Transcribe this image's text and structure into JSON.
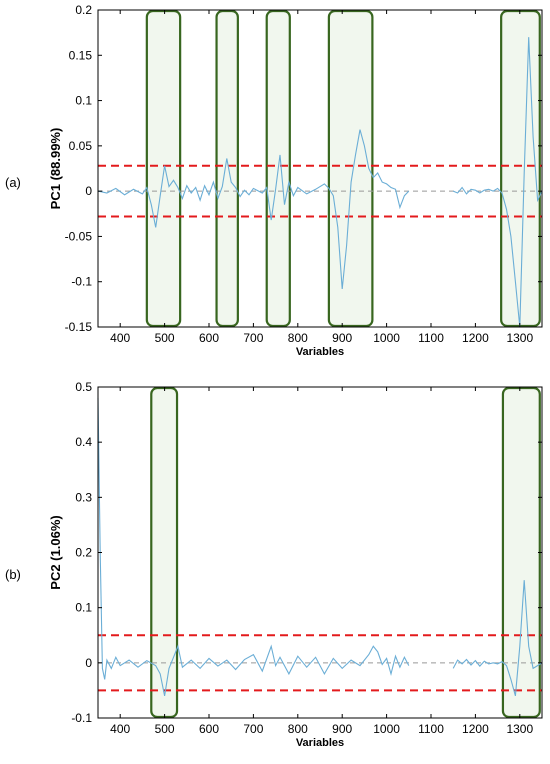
{
  "chart_data": [
    {
      "type": "line",
      "panel_label": "(a)",
      "xlabel": "Variables",
      "ylabel": "PC1 (88.99%)",
      "xlim": [
        350,
        1350
      ],
      "ylim": [
        -0.15,
        0.2
      ],
      "xticks": [
        400,
        500,
        600,
        700,
        800,
        900,
        1000,
        1100,
        1200,
        1300
      ],
      "yticks": [
        -0.15,
        -0.1,
        -0.05,
        0,
        0.05,
        0.1,
        0.15,
        0.2
      ],
      "ytick_labels": [
        "-0.15",
        "-0.1",
        "-0.05",
        "0",
        "0.05",
        "0.1",
        "0.15",
        "0.2"
      ],
      "grid": false,
      "series": [
        {
          "color": "#6baed6",
          "segments": [
            [
              [
                350,
                0
              ],
              [
                370,
                -0.002
              ],
              [
                390,
                0.003
              ],
              [
                410,
                -0.004
              ],
              [
                430,
                0.002
              ],
              [
                450,
                -0.003
              ],
              [
                460,
                0.004
              ],
              [
                470,
                -0.015
              ],
              [
                480,
                -0.04
              ],
              [
                490,
                -0.005
              ],
              [
                500,
                0.028
              ],
              [
                510,
                0.005
              ],
              [
                520,
                0.012
              ],
              [
                530,
                0.004
              ],
              [
                540,
                -0.008
              ],
              [
                550,
                0.006
              ],
              [
                560,
                -0.002
              ],
              [
                570,
                0.004
              ],
              [
                580,
                -0.01
              ],
              [
                590,
                0.006
              ],
              [
                600,
                -0.004
              ],
              [
                610,
                0.01
              ],
              [
                620,
                -0.008
              ],
              [
                630,
                0.005
              ],
              [
                640,
                0.036
              ],
              [
                650,
                0.01
              ],
              [
                660,
                0.004
              ],
              [
                670,
                -0.006
              ],
              [
                680,
                0.001
              ],
              [
                690,
                -0.004
              ],
              [
                700,
                0.003
              ],
              [
                720,
                -0.002
              ],
              [
                730,
                0.004
              ],
              [
                740,
                -0.032
              ],
              [
                750,
                0.002
              ],
              [
                760,
                0.04
              ],
              [
                770,
                -0.015
              ],
              [
                780,
                0.01
              ],
              [
                790,
                -0.005
              ],
              [
                800,
                0.004
              ],
              [
                820,
                -0.003
              ],
              [
                840,
                0.002
              ],
              [
                860,
                0.008
              ],
              [
                870,
                0.003
              ],
              [
                880,
                -0.005
              ],
              [
                890,
                -0.04
              ],
              [
                900,
                -0.108
              ],
              [
                910,
                -0.06
              ],
              [
                920,
                0.01
              ],
              [
                930,
                0.04
              ],
              [
                940,
                0.068
              ],
              [
                950,
                0.05
              ],
              [
                960,
                0.025
              ],
              [
                970,
                0.015
              ],
              [
                980,
                0.02
              ],
              [
                990,
                0.01
              ],
              [
                1000,
                0.008
              ],
              [
                1010,
                0.004
              ],
              [
                1020,
                0.002
              ],
              [
                1030,
                -0.018
              ],
              [
                1040,
                -0.005
              ],
              [
                1050,
                0
              ]
            ],
            [
              [
                1150,
                0
              ],
              [
                1160,
                -0.002
              ],
              [
                1170,
                0.004
              ],
              [
                1180,
                -0.003
              ],
              [
                1190,
                0.002
              ],
              [
                1200,
                0.001
              ],
              [
                1210,
                -0.002
              ],
              [
                1220,
                0.001
              ],
              [
                1230,
                0.002
              ],
              [
                1240,
                0
              ],
              [
                1250,
                0.003
              ],
              [
                1260,
                -0.002
              ],
              [
                1270,
                -0.02
              ],
              [
                1280,
                -0.05
              ],
              [
                1290,
                -0.1
              ],
              [
                1300,
                -0.15
              ],
              [
                1310,
                0.02
              ],
              [
                1320,
                0.17
              ],
              [
                1330,
                0.06
              ],
              [
                1340,
                -0.01
              ],
              [
                1350,
                0
              ]
            ]
          ]
        }
      ],
      "threshold_lines": [
        0.028,
        -0.028
      ],
      "threshold_color": "#e31a1c",
      "zero_line_color": "#999999",
      "highlight_regions": [
        [
          460,
          535
        ],
        [
          617,
          665
        ],
        [
          730,
          782
        ],
        [
          870,
          968
        ],
        [
          1258,
          1345
        ]
      ],
      "highlight_color": "#38661f"
    },
    {
      "type": "line",
      "panel_label": "(b)",
      "xlabel": "Variables",
      "ylabel": "PC2 (1.06%)",
      "xlim": [
        350,
        1350
      ],
      "ylim": [
        -0.1,
        0.5
      ],
      "xticks": [
        400,
        500,
        600,
        700,
        800,
        900,
        1000,
        1100,
        1200,
        1300
      ],
      "yticks": [
        -0.1,
        0,
        0.1,
        0.2,
        0.3,
        0.4,
        0.5
      ],
      "ytick_labels": [
        "-0.1",
        "0",
        "0.1",
        "0.2",
        "0.3",
        "0.4",
        "0.5"
      ],
      "grid": false,
      "series": [
        {
          "color": "#6baed6",
          "segments": [
            [
              [
                350,
                0.48
              ],
              [
                355,
                0.2
              ],
              [
                360,
                -0.01
              ],
              [
                365,
                -0.03
              ],
              [
                370,
                0.005
              ],
              [
                380,
                -0.01
              ],
              [
                390,
                0.01
              ],
              [
                400,
                -0.005
              ],
              [
                420,
                0.005
              ],
              [
                440,
                -0.008
              ],
              [
                460,
                0.004
              ],
              [
                480,
                -0.005
              ],
              [
                490,
                -0.02
              ],
              [
                500,
                -0.06
              ],
              [
                510,
                -0.01
              ],
              [
                520,
                0.01
              ],
              [
                530,
                0.03
              ],
              [
                540,
                -0.008
              ],
              [
                560,
                0.005
              ],
              [
                580,
                -0.01
              ],
              [
                600,
                0.008
              ],
              [
                620,
                -0.006
              ],
              [
                640,
                0.005
              ],
              [
                660,
                -0.012
              ],
              [
                680,
                0.006
              ],
              [
                700,
                0.015
              ],
              [
                720,
                -0.015
              ],
              [
                740,
                0.03
              ],
              [
                750,
                -0.005
              ],
              [
                760,
                0.01
              ],
              [
                780,
                -0.02
              ],
              [
                800,
                0.012
              ],
              [
                820,
                -0.008
              ],
              [
                840,
                0.01
              ],
              [
                860,
                -0.02
              ],
              [
                880,
                0.008
              ],
              [
                900,
                -0.01
              ],
              [
                920,
                0.005
              ],
              [
                940,
                -0.005
              ],
              [
                960,
                0.015
              ],
              [
                970,
                0.03
              ],
              [
                980,
                0.02
              ],
              [
                990,
                -0.003
              ],
              [
                1000,
                0.008
              ],
              [
                1010,
                -0.02
              ],
              [
                1020,
                0.012
              ],
              [
                1030,
                -0.008
              ],
              [
                1040,
                0.01
              ],
              [
                1050,
                -0.005
              ]
            ],
            [
              [
                1150,
                -0.01
              ],
              [
                1160,
                0.005
              ],
              [
                1170,
                -0.002
              ],
              [
                1180,
                0.006
              ],
              [
                1190,
                -0.004
              ],
              [
                1200,
                0.004
              ],
              [
                1210,
                -0.006
              ],
              [
                1220,
                0.003
              ],
              [
                1230,
                -0.002
              ],
              [
                1240,
                0
              ],
              [
                1250,
                -0.002
              ],
              [
                1260,
                0.002
              ],
              [
                1270,
                -0.005
              ],
              [
                1280,
                -0.03
              ],
              [
                1290,
                -0.06
              ],
              [
                1300,
                0.03
              ],
              [
                1310,
                0.15
              ],
              [
                1320,
                0.03
              ],
              [
                1330,
                -0.01
              ],
              [
                1340,
                -0.005
              ],
              [
                1350,
                0
              ]
            ]
          ]
        }
      ],
      "threshold_lines": [
        0.05,
        -0.05
      ],
      "threshold_color": "#e31a1c",
      "zero_line_color": "#999999",
      "highlight_regions": [
        [
          470,
          528
        ],
        [
          1262,
          1345
        ]
      ],
      "highlight_color": "#38661f"
    }
  ]
}
